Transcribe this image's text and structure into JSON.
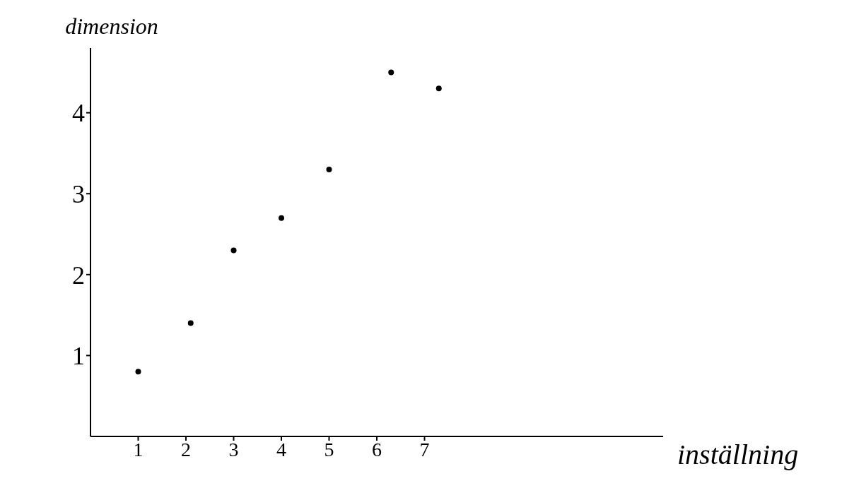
{
  "chart_data": {
    "type": "scatter",
    "xlabel": "inställning",
    "ylabel": "dimension",
    "x": [
      1,
      2.1,
      3,
      4,
      5,
      6.3,
      7.3
    ],
    "values": [
      0.8,
      1.4,
      2.3,
      2.7,
      3.3,
      4.5,
      4.3
    ],
    "color": "#000000",
    "marker": "circle",
    "xlim": [
      0,
      12
    ],
    "xticks": [
      1,
      2,
      3,
      4,
      5,
      6,
      7
    ],
    "ylim": [
      0,
      4.8
    ],
    "yticks": [
      1,
      2,
      3,
      4
    ],
    "grid": false,
    "legend": false
  }
}
